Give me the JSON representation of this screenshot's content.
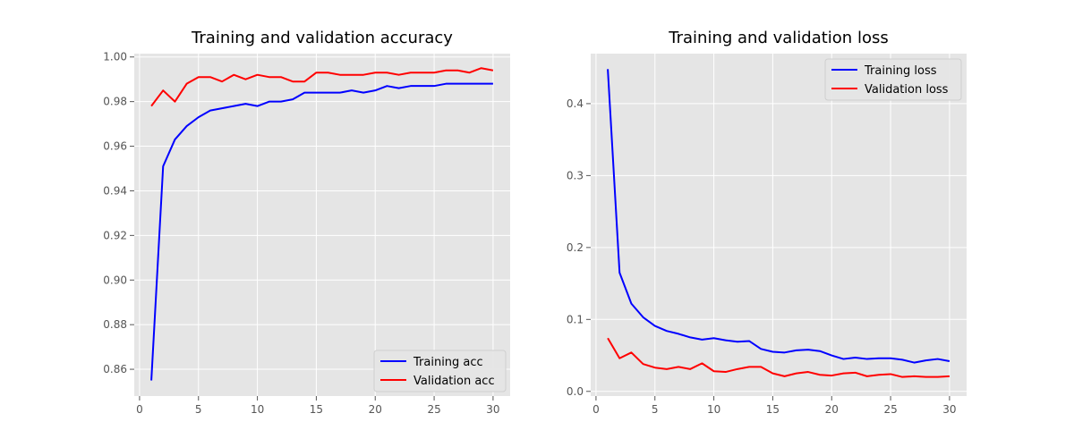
{
  "chart_data": [
    {
      "type": "line",
      "title": "Training and validation accuracy",
      "xlabel": "",
      "ylabel": "",
      "xlim": [
        -0.45,
        31.45
      ],
      "ylim": [
        0.848,
        1.0015
      ],
      "xticks": [
        0,
        5,
        10,
        15,
        20,
        25,
        30
      ],
      "yticks": [
        0.86,
        0.88,
        0.9,
        0.92,
        0.94,
        0.96,
        0.98,
        1.0
      ],
      "ytick_decimals": 2,
      "grid": true,
      "legend_position": "bottom-right",
      "x": [
        1,
        2,
        3,
        4,
        5,
        6,
        7,
        8,
        9,
        10,
        11,
        12,
        13,
        14,
        15,
        16,
        17,
        18,
        19,
        20,
        21,
        22,
        23,
        24,
        25,
        26,
        27,
        28,
        29,
        30
      ],
      "series": [
        {
          "name": "Training acc",
          "color": "#0000ff",
          "values": [
            0.855,
            0.951,
            0.963,
            0.969,
            0.973,
            0.976,
            0.977,
            0.978,
            0.979,
            0.978,
            0.98,
            0.98,
            0.981,
            0.984,
            0.984,
            0.984,
            0.984,
            0.985,
            0.984,
            0.985,
            0.987,
            0.986,
            0.987,
            0.987,
            0.987,
            0.988,
            0.988,
            0.988,
            0.988,
            0.988
          ]
        },
        {
          "name": "Validation acc",
          "color": "#ff0000",
          "values": [
            0.978,
            0.985,
            0.98,
            0.988,
            0.991,
            0.991,
            0.989,
            0.992,
            0.99,
            0.992,
            0.991,
            0.991,
            0.989,
            0.989,
            0.993,
            0.993,
            0.992,
            0.992,
            0.992,
            0.993,
            0.993,
            0.992,
            0.993,
            0.993,
            0.993,
            0.994,
            0.994,
            0.993,
            0.995,
            0.994
          ]
        }
      ]
    },
    {
      "type": "line",
      "title": "Training and validation loss",
      "xlabel": "",
      "ylabel": "",
      "xlim": [
        -0.45,
        31.45
      ],
      "ylim": [
        -0.0065,
        0.4695
      ],
      "xticks": [
        0,
        5,
        10,
        15,
        20,
        25,
        30
      ],
      "yticks": [
        0.0,
        0.1,
        0.2,
        0.3,
        0.4
      ],
      "ytick_decimals": 1,
      "grid": true,
      "legend_position": "top-right",
      "x": [
        1,
        2,
        3,
        4,
        5,
        6,
        7,
        8,
        9,
        10,
        11,
        12,
        13,
        14,
        15,
        16,
        17,
        18,
        19,
        20,
        21,
        22,
        23,
        24,
        25,
        26,
        27,
        28,
        29,
        30
      ],
      "series": [
        {
          "name": "Training loss",
          "color": "#0000ff",
          "values": [
            0.448,
            0.165,
            0.122,
            0.103,
            0.091,
            0.084,
            0.08,
            0.075,
            0.072,
            0.074,
            0.071,
            0.069,
            0.07,
            0.059,
            0.055,
            0.054,
            0.057,
            0.058,
            0.056,
            0.05,
            0.045,
            0.047,
            0.045,
            0.046,
            0.046,
            0.044,
            0.04,
            0.043,
            0.045,
            0.042
          ]
        },
        {
          "name": "Validation loss",
          "color": "#ff0000",
          "values": [
            0.074,
            0.046,
            0.054,
            0.038,
            0.033,
            0.031,
            0.034,
            0.031,
            0.039,
            0.028,
            0.027,
            0.031,
            0.034,
            0.034,
            0.025,
            0.021,
            0.025,
            0.027,
            0.023,
            0.022,
            0.025,
            0.026,
            0.021,
            0.023,
            0.024,
            0.02,
            0.021,
            0.02,
            0.02,
            0.021
          ]
        }
      ]
    }
  ]
}
